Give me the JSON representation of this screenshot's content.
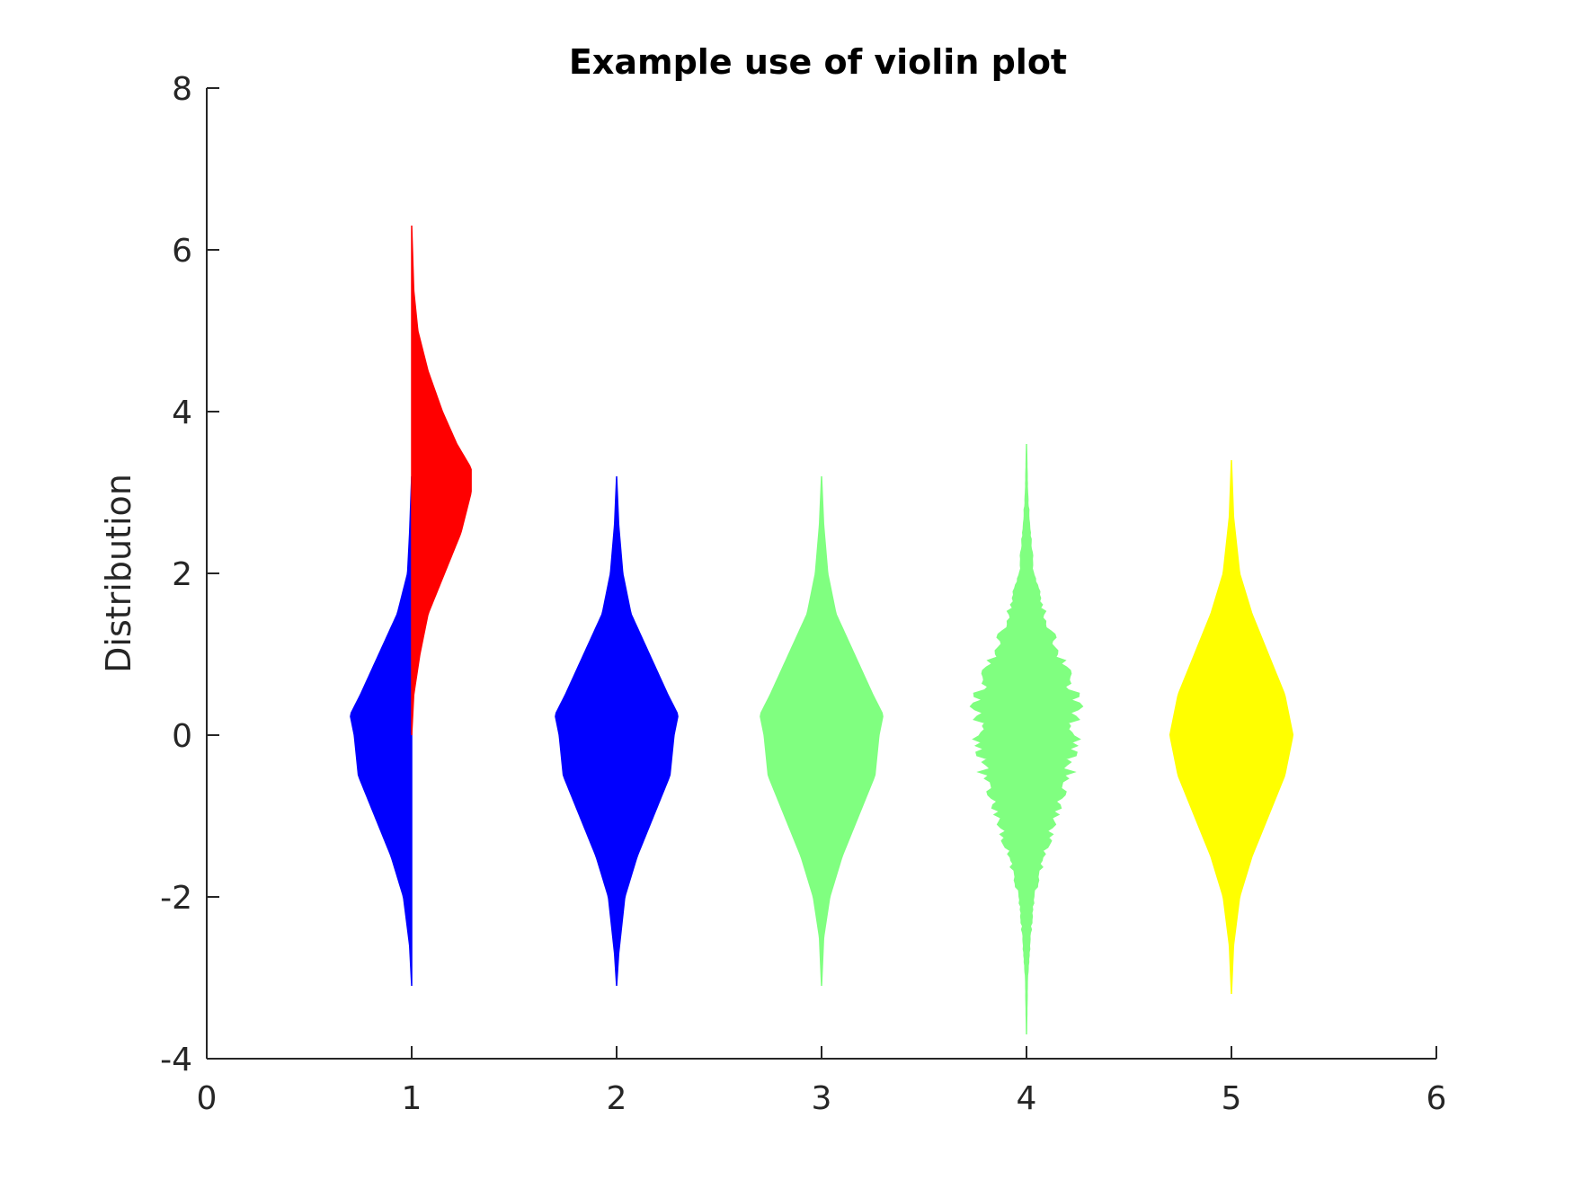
{
  "chart_data": {
    "type": "violin",
    "title": "Example use of violin plot",
    "xlabel": "",
    "ylabel": "Distribution",
    "xlim": [
      0,
      6
    ],
    "ylim": [
      -4,
      8
    ],
    "xticks": [
      "0",
      "1",
      "2",
      "3",
      "4",
      "5",
      "6"
    ],
    "yticks": [
      "-4",
      "-2",
      "0",
      "2",
      "4",
      "6",
      "8"
    ],
    "grid": false,
    "violins": [
      {
        "position": 1,
        "side": "left",
        "color": "#0000ff",
        "style": "smooth",
        "profile": [
          [
            -3.1,
            0.0
          ],
          [
            -2.6,
            0.01
          ],
          [
            -2.0,
            0.04
          ],
          [
            -1.5,
            0.1
          ],
          [
            -1.0,
            0.18
          ],
          [
            -0.5,
            0.26
          ],
          [
            0.0,
            0.28
          ],
          [
            0.25,
            0.3
          ],
          [
            0.5,
            0.25
          ],
          [
            1.0,
            0.16
          ],
          [
            1.5,
            0.07
          ],
          [
            2.0,
            0.02
          ],
          [
            2.5,
            0.01
          ],
          [
            3.2,
            0.0
          ]
        ]
      },
      {
        "position": 1,
        "side": "right",
        "color": "#ff0000",
        "style": "smooth",
        "profile": [
          [
            0.0,
            0.0
          ],
          [
            0.5,
            0.01
          ],
          [
            1.0,
            0.04
          ],
          [
            1.5,
            0.08
          ],
          [
            2.0,
            0.16
          ],
          [
            2.5,
            0.24
          ],
          [
            3.0,
            0.29
          ],
          [
            3.3,
            0.29
          ],
          [
            3.6,
            0.22
          ],
          [
            4.0,
            0.15
          ],
          [
            4.5,
            0.08
          ],
          [
            5.0,
            0.03
          ],
          [
            5.5,
            0.01
          ],
          [
            6.3,
            0.0
          ]
        ]
      },
      {
        "position": 2,
        "side": "both",
        "color": "#0000ff",
        "style": "smooth",
        "profile": [
          [
            -3.1,
            0.0
          ],
          [
            -2.7,
            0.01
          ],
          [
            -2.0,
            0.04
          ],
          [
            -1.5,
            0.1
          ],
          [
            -1.0,
            0.18
          ],
          [
            -0.5,
            0.26
          ],
          [
            0.0,
            0.28
          ],
          [
            0.25,
            0.3
          ],
          [
            0.5,
            0.25
          ],
          [
            1.0,
            0.16
          ],
          [
            1.5,
            0.07
          ],
          [
            2.0,
            0.03
          ],
          [
            2.6,
            0.01
          ],
          [
            3.2,
            0.0
          ]
        ]
      },
      {
        "position": 3,
        "side": "both",
        "color": "#80ff80",
        "style": "smooth",
        "profile": [
          [
            -3.1,
            0.0
          ],
          [
            -2.5,
            0.01
          ],
          [
            -2.0,
            0.04
          ],
          [
            -1.5,
            0.1
          ],
          [
            -1.0,
            0.18
          ],
          [
            -0.5,
            0.26
          ],
          [
            0.0,
            0.28
          ],
          [
            0.25,
            0.3
          ],
          [
            0.5,
            0.25
          ],
          [
            1.0,
            0.16
          ],
          [
            1.5,
            0.07
          ],
          [
            2.0,
            0.03
          ],
          [
            2.6,
            0.01
          ],
          [
            3.2,
            0.0
          ]
        ]
      },
      {
        "position": 4,
        "side": "both",
        "color": "#80ff80",
        "style": "histogram",
        "profile": [
          [
            -3.7,
            0.0
          ],
          [
            -3.0,
            0.005
          ],
          [
            -2.5,
            0.02
          ],
          [
            -2.0,
            0.04
          ],
          [
            -1.5,
            0.1
          ],
          [
            -1.0,
            0.16
          ],
          [
            -0.5,
            0.24
          ],
          [
            0.0,
            0.27
          ],
          [
            0.4,
            0.29
          ],
          [
            1.0,
            0.18
          ],
          [
            1.5,
            0.1
          ],
          [
            2.0,
            0.04
          ],
          [
            2.5,
            0.02
          ],
          [
            3.0,
            0.005
          ],
          [
            3.6,
            0.0
          ]
        ]
      },
      {
        "position": 5,
        "side": "both",
        "color": "#ffff00",
        "style": "smooth",
        "profile": [
          [
            -3.2,
            0.0
          ],
          [
            -2.6,
            0.01
          ],
          [
            -2.0,
            0.04
          ],
          [
            -1.5,
            0.1
          ],
          [
            -1.0,
            0.18
          ],
          [
            -0.5,
            0.26
          ],
          [
            0.0,
            0.3
          ],
          [
            0.5,
            0.26
          ],
          [
            1.0,
            0.18
          ],
          [
            1.5,
            0.1
          ],
          [
            2.0,
            0.04
          ],
          [
            2.7,
            0.01
          ],
          [
            3.4,
            0.0
          ]
        ]
      }
    ]
  }
}
